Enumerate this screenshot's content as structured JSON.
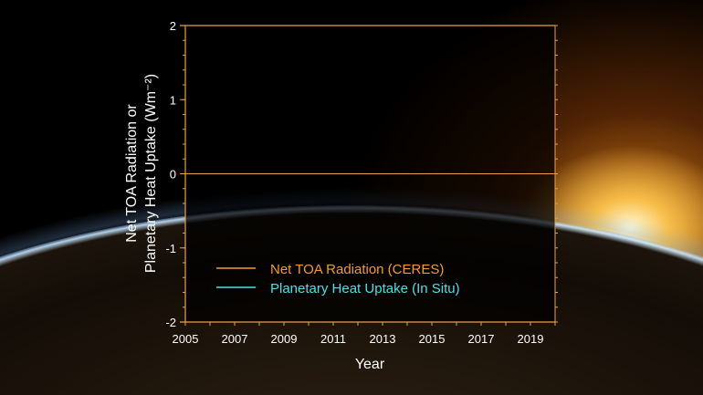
{
  "chart_data": {
    "type": "line",
    "title": "",
    "xlabel": "Year",
    "ylabel_lines": [
      "Net TOA Radiation or",
      "Planetary Heat Uptake (Wm⁻²)"
    ],
    "xlim": [
      2005,
      2020
    ],
    "ylim": [
      -2,
      2
    ],
    "xticks": [
      "2005",
      "2007",
      "2009",
      "2011",
      "2013",
      "2015",
      "2017",
      "2019"
    ],
    "yticks": [
      "-2",
      "-1",
      "0",
      "1",
      "2"
    ],
    "grid": false,
    "legend_position": "bottom-left",
    "series": [
      {
        "name": "Net TOA Radiation (CERES)",
        "color": "#f39a3a",
        "values": []
      },
      {
        "name": "Planetary Heat Uptake (In Situ)",
        "color": "#4ee0e6",
        "values": []
      }
    ],
    "axis_color": "#e8a04a"
  }
}
